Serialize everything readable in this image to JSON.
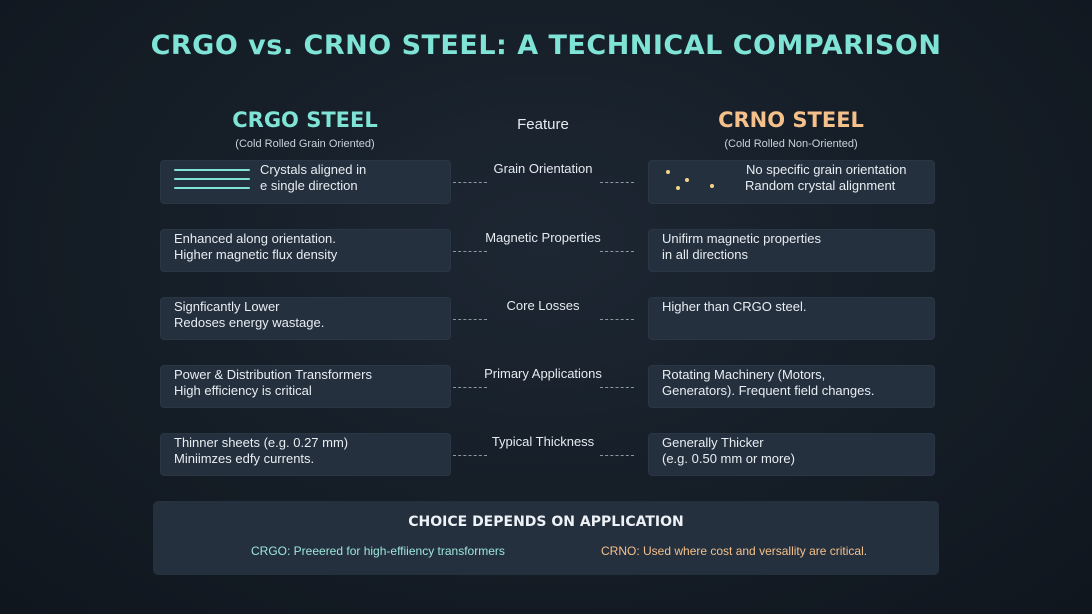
{
  "title": "CRGO vs. CRNO STEEL: A TECHNICAL COMPARISON",
  "left_column": {
    "heading": "CRGO STEEL",
    "subheading": "(Cold Rolled Grain Oriented)",
    "color": "#7fe3d6"
  },
  "feature_heading": "Feature",
  "right_column": {
    "heading": "CRNO STEEL",
    "subheading": "(Cold Rolled Non-Oriented)",
    "color": "#f5c08a"
  },
  "rows": [
    {
      "feature": "Grain Orientation",
      "crgo": [
        "Crystals aligned in",
        "e single direction"
      ],
      "crno": [
        "No specific grain orientation",
        "Random crystal alignment"
      ],
      "crgo_icon": "parallel-lines-icon",
      "crno_icon": "scattered-dots-icon"
    },
    {
      "feature": "Magnetic Properties",
      "crgo": [
        "Enhanced along orientation.",
        "Higher magnetic flux density"
      ],
      "crno": [
        "Unifirm magnetic properties",
        "in all directions"
      ]
    },
    {
      "feature": "Core Losses",
      "crgo": [
        "Signficantly Lower",
        "Redoses energy wastage."
      ],
      "crno": [
        "Higher than CRGO steel.",
        ""
      ]
    },
    {
      "feature": "Primary Applications",
      "crgo": [
        "Power & Distribution Transformers",
        "High efficiency is critical"
      ],
      "crno": [
        "Rotating Machinery (Motors,",
        "Generators). Frequent field changes."
      ]
    },
    {
      "feature": "Typical Thickness",
      "crgo": [
        "Thinner sheets (e.g. 0.27 mm)",
        "Miniimzes edfy currents."
      ],
      "crno": [
        "Generally Thicker",
        "(e.g. 0.50 mm or more)"
      ]
    }
  ],
  "summary": {
    "title": "CHOICE DEPENDS ON APPLICATION",
    "crgo_note": "CRGO: Preeered for high-effiiency transformers",
    "crno_note": "CRNO: Used where cost and versallity are critical."
  }
}
